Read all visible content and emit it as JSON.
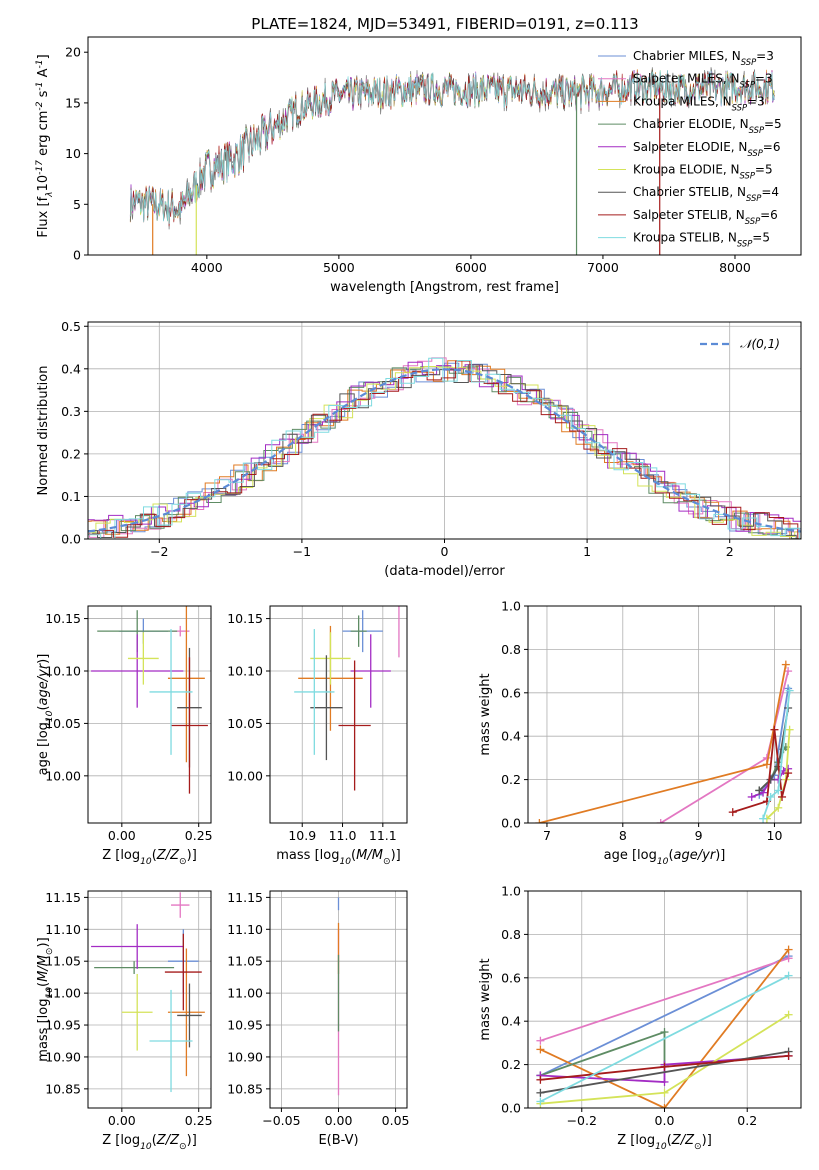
{
  "figure_title": "PLATE=1824, MJD=53491, FIBERID=0191, z=0.113",
  "models": [
    {
      "name": "Chabrier MILES, N$_{SSP}$=3",
      "color": "#6b8fd6"
    },
    {
      "name": "Salpeter MILES, N$_{SSP}$=3",
      "color": "#e377c2"
    },
    {
      "name": "Kroupa MILES, N$_{SSP}$=3",
      "color": "#e07b23"
    },
    {
      "name": "Chabrier ELODIE, N$_{SSP}$=5",
      "color": "#5e8c64"
    },
    {
      "name": "Salpeter ELODIE, N$_{SSP}$=6",
      "color": "#a32cc4"
    },
    {
      "name": "Kroupa ELODIE, N$_{SSP}$=5",
      "color": "#d4e359"
    },
    {
      "name": "Chabrier STELIB, N$_{SSP}$=4",
      "color": "#555555"
    },
    {
      "name": "Salpeter STELIB, N$_{SSP}$=6",
      "color": "#a51c1c"
    },
    {
      "name": "Kroupa STELIB, N$_{SSP}$=5",
      "color": "#7fdbe0"
    }
  ],
  "chart_data": [
    {
      "type": "line",
      "title": "PLATE=1824, MJD=53491, FIBERID=0191, z=0.113",
      "xlabel": "wavelength [Angstrom, rest frame]",
      "ylabel": "Flux [f$_\\lambda$10$^{-17}$ erg cm$^{-2}$ s$^{-1}$ A$^{-1}$]",
      "xlim": [
        3100,
        8500
      ],
      "ylim": [
        0,
        21.5
      ],
      "xticks": [
        4000,
        5000,
        6000,
        7000,
        8000
      ],
      "yticks": [
        0,
        5,
        10,
        15,
        20
      ],
      "legend": "upper right",
      "grid": false,
      "spectrum_envelope": {
        "x": [
          3420,
          3600,
          3800,
          4000,
          4200,
          4400,
          4700,
          5000,
          5300,
          5600,
          6000,
          6400,
          6800,
          7200,
          7600,
          8000,
          8300
        ],
        "y": [
          5.2,
          5.0,
          4.5,
          8.5,
          9.5,
          11.5,
          14.5,
          15.8,
          16.0,
          16.3,
          16.3,
          16.2,
          15.9,
          16.6,
          16.4,
          16.5,
          16.6
        ]
      }
    },
    {
      "type": "line",
      "xlabel": "(data-model)/error",
      "ylabel": "Normed distribution",
      "xlim": [
        -2.5,
        2.5
      ],
      "ylim": [
        0,
        0.51
      ],
      "xticks": [
        -2,
        -1,
        0,
        1,
        2
      ],
      "yticks": [
        0.0,
        0.1,
        0.2,
        0.3,
        0.4,
        0.5
      ],
      "legend_entry": "$\\mathcal{N}(0,1)$",
      "legend": "upper right",
      "grid": true
    },
    {
      "type": "scatter",
      "xlabel": "Z [log$_{10}$($Z/Z_\\odot$)]",
      "ylabel": "age  [log$_{10}$($age/yr$)]",
      "xlim": [
        -0.11,
        0.29
      ],
      "ylim": [
        9.955,
        10.162
      ],
      "xticks": [
        0.0,
        0.25
      ],
      "yticks": [
        10.0,
        10.05,
        10.1,
        10.15
      ],
      "grid": true,
      "points": [
        {
          "x": 0.07,
          "y": 10.138,
          "xerr": 0.08,
          "yerr": 0.012
        },
        {
          "x": 0.19,
          "y": 10.138,
          "xerr": 0.03,
          "yerr": 0.005
        },
        {
          "x": 0.21,
          "y": 10.093,
          "xerr": 0.06,
          "yerr": 0.08
        },
        {
          "x": 0.05,
          "y": 10.138,
          "xerr": 0.13,
          "yerr": 0.02
        },
        {
          "x": 0.05,
          "y": 10.1,
          "xerr": 0.15,
          "yerr": 0.035
        },
        {
          "x": 0.07,
          "y": 10.112,
          "xerr": 0.05,
          "yerr": 0.025
        },
        {
          "x": 0.22,
          "y": 10.065,
          "xerr": 0.04,
          "yerr": 0.057
        },
        {
          "x": 0.22,
          "y": 10.048,
          "xerr": 0.06,
          "yerr": 0.065
        },
        {
          "x": 0.16,
          "y": 10.08,
          "xerr": 0.07,
          "yerr": 0.06
        }
      ]
    },
    {
      "type": "scatter",
      "xlabel": "mass [log$_{10}$($M/M_\\odot$)]",
      "ylabel": "",
      "xlim": [
        10.82,
        11.16
      ],
      "ylim": [
        9.955,
        10.162
      ],
      "xticks": [
        10.9,
        11.0,
        11.1
      ],
      "yticks": [
        10.0,
        10.05,
        10.1,
        10.15
      ],
      "grid": true,
      "points": [
        {
          "x": 11.05,
          "y": 10.138,
          "xerr": 0.05,
          "yerr": 0.02
        },
        {
          "x": 11.14,
          "y": 10.138,
          "xerr": 0.0,
          "yerr": 0.025
        },
        {
          "x": 10.97,
          "y": 10.093,
          "xerr": 0.08,
          "yerr": 0.05
        },
        {
          "x": 11.04,
          "y": 10.138,
          "xerr": 0.02,
          "yerr": 0.015
        },
        {
          "x": 11.07,
          "y": 10.1,
          "xerr": 0.05,
          "yerr": 0.035
        },
        {
          "x": 10.97,
          "y": 10.112,
          "xerr": 0.05,
          "yerr": 0.025
        },
        {
          "x": 10.96,
          "y": 10.065,
          "xerr": 0.04,
          "yerr": 0.05
        },
        {
          "x": 11.03,
          "y": 10.048,
          "xerr": 0.04,
          "yerr": 0.062
        },
        {
          "x": 10.93,
          "y": 10.08,
          "xerr": 0.05,
          "yerr": 0.06
        }
      ]
    },
    {
      "type": "line",
      "xlabel": "age  [log$_{10}$($age/yr$)]",
      "ylabel": "mass weight",
      "xlim": [
        6.75,
        10.35
      ],
      "ylim": [
        0,
        1.0
      ],
      "xticks": [
        7,
        8,
        9,
        10
      ],
      "yticks": [
        0.0,
        0.2,
        0.4,
        0.6,
        0.8,
        1.0
      ],
      "grid": true,
      "series": [
        {
          "x": [
            9.8,
            10.0,
            10.18
          ],
          "y": [
            0.13,
            0.22,
            0.62
          ]
        },
        {
          "x": [
            8.5,
            9.9,
            10.18
          ],
          "y": [
            0.0,
            0.3,
            0.7
          ]
        },
        {
          "x": [
            6.9,
            9.9,
            10.15
          ],
          "y": [
            0.0,
            0.27,
            0.73
          ]
        },
        {
          "x": [
            9.8,
            9.95,
            10.05,
            10.12,
            10.15
          ],
          "y": [
            0.15,
            0.2,
            0.28,
            0.34,
            0.35
          ]
        },
        {
          "x": [
            9.7,
            9.85,
            9.95,
            10.05,
            10.12,
            10.18
          ],
          "y": [
            0.12,
            0.14,
            0.2,
            0.2,
            0.24,
            0.25
          ]
        },
        {
          "x": [
            9.9,
            10.05,
            10.15,
            10.2
          ],
          "y": [
            0.02,
            0.07,
            0.2,
            0.43
          ]
        },
        {
          "x": [
            9.8,
            9.95,
            10.05,
            10.18
          ],
          "y": [
            0.15,
            0.2,
            0.26,
            0.53
          ]
        },
        {
          "x": [
            9.45,
            9.9,
            10.0,
            10.1,
            10.18
          ],
          "y": [
            0.05,
            0.1,
            0.43,
            0.12,
            0.23
          ]
        },
        {
          "x": [
            9.85,
            9.95,
            10.05,
            10.2
          ],
          "y": [
            0.02,
            0.12,
            0.15,
            0.61
          ]
        }
      ]
    },
    {
      "type": "scatter",
      "xlabel": "Z [log$_{10}$($Z/Z_\\odot$)]",
      "ylabel": "mass [log$_{10}$($M/M_\\odot$)]",
      "xlim": [
        -0.11,
        0.29
      ],
      "ylim": [
        10.82,
        11.16
      ],
      "xticks": [
        0.0,
        0.25
      ],
      "yticks": [
        10.85,
        10.9,
        10.95,
        11.0,
        11.05,
        11.1,
        11.15
      ],
      "grid": true,
      "points": [
        {
          "x": 0.2,
          "y": 11.05,
          "xerr": 0.05,
          "yerr": 0.05
        },
        {
          "x": 0.19,
          "y": 11.138,
          "xerr": 0.03,
          "yerr": 0.02
        },
        {
          "x": 0.21,
          "y": 10.97,
          "xerr": 0.06,
          "yerr": 0.1
        },
        {
          "x": 0.04,
          "y": 11.04,
          "xerr": 0.13,
          "yerr": 0.01
        },
        {
          "x": 0.05,
          "y": 11.073,
          "xerr": 0.15,
          "yerr": 0.035
        },
        {
          "x": 0.05,
          "y": 10.97,
          "xerr": 0.05,
          "yerr": 0.06
        },
        {
          "x": 0.22,
          "y": 10.965,
          "xerr": 0.04,
          "yerr": 0.05
        },
        {
          "x": 0.2,
          "y": 11.033,
          "xerr": 0.06,
          "yerr": 0.06
        },
        {
          "x": 0.16,
          "y": 10.925,
          "xerr": 0.07,
          "yerr": 0.08
        }
      ]
    },
    {
      "type": "scatter",
      "xlabel": "E(B-V)",
      "ylabel": "",
      "xlim": [
        -0.06,
        0.06
      ],
      "ylim": [
        10.82,
        11.16
      ],
      "xticks": [
        -0.05,
        0.0,
        0.05
      ],
      "yticks": [
        10.85,
        10.9,
        10.95,
        11.0,
        11.05,
        11.1,
        11.15
      ],
      "grid": true,
      "points": [
        {
          "x": 0.0,
          "y": 11.14,
          "xerr": 0.0,
          "yerr": 0.01
        },
        {
          "x": 0.0,
          "y": 10.97,
          "xerr": 0.0,
          "yerr": 0.13
        },
        {
          "x": 0.0,
          "y": 11.07,
          "xerr": 0.0,
          "yerr": 0.04
        },
        {
          "x": 0.0,
          "y": 11.0,
          "xerr": 0.0,
          "yerr": 0.06
        }
      ]
    },
    {
      "type": "line",
      "xlabel": "Z [log$_{10}$($Z/Z_\\odot$)]",
      "ylabel": "mass weight",
      "xlim": [
        -0.33,
        0.33
      ],
      "ylim": [
        0,
        1.0
      ],
      "xticks": [
        -0.2,
        0.0,
        0.2
      ],
      "yticks": [
        0.0,
        0.2,
        0.4,
        0.6,
        0.8,
        1.0
      ],
      "grid": true,
      "series": [
        {
          "x": [
            -0.3,
            0.3
          ],
          "y": [
            0.15,
            0.7
          ]
        },
        {
          "x": [
            -0.3,
            0.3
          ],
          "y": [
            0.31,
            0.69
          ]
        },
        {
          "x": [
            -0.3,
            0.0,
            0.3
          ],
          "y": [
            0.27,
            0.0,
            0.73
          ]
        },
        {
          "x": [
            -0.3,
            0.0,
            0.0
          ],
          "y": [
            0.15,
            0.35,
            0.2
          ]
        },
        {
          "x": [
            -0.3,
            0.0,
            0.0,
            0.3
          ],
          "y": [
            0.15,
            0.12,
            0.2,
            0.24
          ]
        },
        {
          "x": [
            -0.3,
            0.0,
            0.3
          ],
          "y": [
            0.02,
            0.07,
            0.43
          ]
        },
        {
          "x": [
            -0.3,
            0.3
          ],
          "y": [
            0.07,
            0.26
          ]
        },
        {
          "x": [
            -0.3,
            0.0,
            0.3
          ],
          "y": [
            0.13,
            0.19,
            0.24
          ]
        },
        {
          "x": [
            -0.3,
            0.3
          ],
          "y": [
            0.03,
            0.61
          ]
        }
      ]
    }
  ]
}
